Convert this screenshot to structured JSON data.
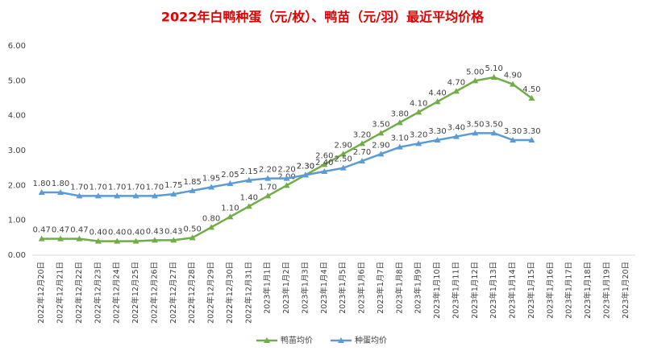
{
  "chart_data": {
    "type": "line",
    "title": "2022年白鸭种蛋（元/枚）、鸭苗（元/羽）最近平均价格",
    "categories": [
      "2022年12月20日",
      "2022年12月21日",
      "2022年12月22日",
      "2022年12月23日",
      "2022年12月24日",
      "2022年12月25日",
      "2022年12月26日",
      "2022年12月27日",
      "2022年12月28日",
      "2022年12月29日",
      "2022年12月30日",
      "2022年12月31日",
      "2023年1月1日",
      "2023年1月2日",
      "2023年1月3日",
      "2023年1月4日",
      "2023年1月5日",
      "2023年1月6日",
      "2023年1月7日",
      "2023年1月8日",
      "2023年1月9日",
      "2023年1月10日",
      "2023年1月11日",
      "2023年1月12日",
      "2023年1月13日",
      "2023年1月14日",
      "2023年1月15日",
      "2023年1月16日",
      "2023年1月17日",
      "2023年1月18日",
      "2023年1月19日",
      "2023年1月20日"
    ],
    "series": [
      {
        "name": "鸭苗均价",
        "color": "#70ad47",
        "values": [
          0.47,
          0.47,
          0.47,
          0.4,
          0.4,
          0.4,
          0.43,
          0.43,
          0.5,
          0.8,
          1.1,
          1.4,
          1.7,
          2.0,
          2.3,
          2.6,
          2.9,
          3.2,
          3.5,
          3.8,
          4.1,
          4.4,
          4.7,
          5.0,
          5.1,
          4.9,
          4.5,
          null,
          null,
          null,
          null,
          null
        ],
        "value_labels": [
          "0.47",
          "0.47",
          "0.47",
          "0.40",
          "0.40",
          "0.40",
          "0.43",
          "0.43",
          "0.50",
          "0.80",
          "1.10",
          "1.40",
          "1.70",
          "2.00",
          "2.30",
          "2.60",
          "2.90",
          "3.20",
          "3.50",
          "3.80",
          "4.10",
          "4.40",
          "4.70",
          "5.00",
          "5.10",
          "4.90",
          "4.50",
          null,
          null,
          null,
          null,
          null
        ]
      },
      {
        "name": "种蛋均价",
        "color": "#5b9bd5",
        "values": [
          1.8,
          1.8,
          1.7,
          1.7,
          1.7,
          1.7,
          1.7,
          1.75,
          1.85,
          1.95,
          2.05,
          2.15,
          2.2,
          2.2,
          2.3,
          2.4,
          2.5,
          2.7,
          2.9,
          3.1,
          3.2,
          3.3,
          3.4,
          3.5,
          3.5,
          3.3,
          3.3,
          null,
          null,
          null,
          null,
          null
        ],
        "value_labels": [
          "1.80",
          "1.80",
          "1.70",
          "1.70",
          "1.70",
          "1.70",
          "1.70",
          "1.75",
          "1.85",
          "1.95",
          "2.05",
          "2.15",
          "2.20",
          "2.20",
          "2.30",
          "2.40",
          "2.50",
          "2.70",
          "2.90",
          "3.10",
          "3.20",
          "3.30",
          "3.40",
          "3.50",
          "3.50",
          "3.30",
          "3.30",
          null,
          null,
          null,
          null,
          null
        ]
      }
    ],
    "ylim": [
      0,
      6
    ],
    "yticks": [
      {
        "value": 0,
        "label": "0.00"
      },
      {
        "value": 1,
        "label": "1.00"
      },
      {
        "value": 2,
        "label": "2.00"
      },
      {
        "value": 3,
        "label": "3.00"
      },
      {
        "value": 4,
        "label": "4.00"
      },
      {
        "value": 5,
        "label": "5.00"
      },
      {
        "value": 6,
        "label": "6.00"
      }
    ],
    "grid": false,
    "legend": "bottom"
  }
}
